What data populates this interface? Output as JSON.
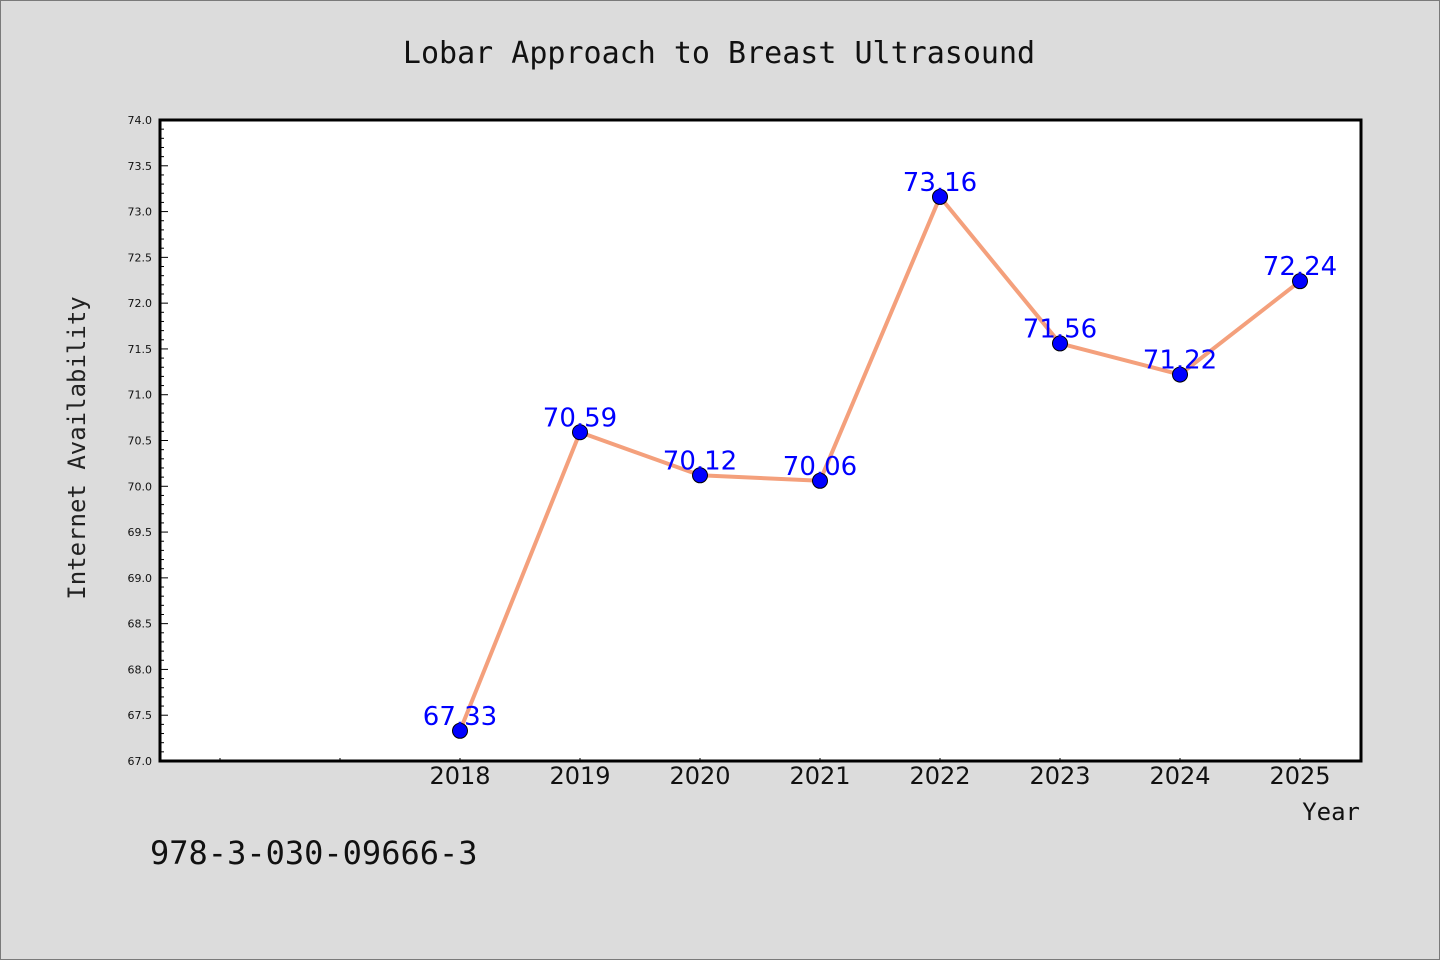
{
  "chart_data": {
    "type": "line",
    "title": "Lobar Approach to Breast Ultrasound",
    "xlabel": "Year",
    "ylabel": "Internet Availability",
    "x_tick_labels": [
      "2018",
      "2019",
      "2020",
      "2021",
      "2022",
      "2023",
      "2024",
      "2025"
    ],
    "x": [
      2018,
      2019,
      2020,
      2021,
      2022,
      2023,
      2024,
      2025
    ],
    "xlim": [
      2015.5,
      2025.5
    ],
    "ylim": [
      67.0,
      74.0
    ],
    "y_ticks": [
      67.0,
      67.5,
      68.0,
      68.5,
      69.0,
      69.5,
      70.0,
      70.5,
      71.0,
      71.5,
      72.0,
      72.5,
      73.0,
      73.5,
      74.0
    ],
    "y_tick_labels": [
      "67.0",
      "67.5",
      "68.0",
      "68.5",
      "69.0",
      "69.5",
      "70.0",
      "70.5",
      "71.0",
      "71.5",
      "72.0",
      "72.5",
      "73.0",
      "73.5",
      "74.0"
    ],
    "series": [
      {
        "values": [
          67.33,
          70.59,
          70.12,
          70.06,
          73.16,
          71.56,
          71.22,
          72.24
        ],
        "data_labels": [
          "67.33",
          "70.59",
          "70.12",
          "70.06",
          "73.16",
          "71.56",
          "71.22",
          "72.24"
        ],
        "line_color": "#f4a07c",
        "marker_color": "#0000ff"
      }
    ],
    "grid": false,
    "legend": "none"
  },
  "footer_text": "978-3-030-09666-3",
  "colors": {
    "background": "#dcdcdc",
    "plot_background": "#ffffff",
    "label_color": "#0000ff"
  }
}
